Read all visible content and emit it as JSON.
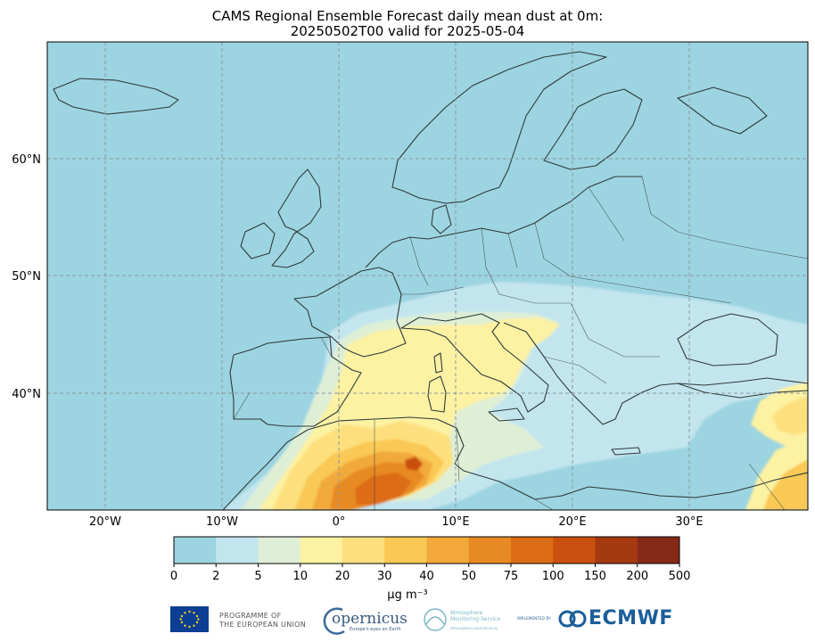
{
  "title": {
    "line1": "CAMS Regional Ensemble Forecast daily mean dust at 0m:",
    "line2": "20250502T00 valid for 2025-05-04"
  },
  "map": {
    "extent": {
      "lon": [
        -25,
        40
      ],
      "lat": [
        30,
        70
      ]
    },
    "ocean_color": "#9dd4e1",
    "gridlines": {
      "lon": [
        -20,
        -10,
        0,
        10,
        20,
        30
      ],
      "lat": [
        40,
        50,
        60
      ],
      "style": "dashed"
    },
    "lon_labels": [
      "20°W",
      "10°W",
      "0°",
      "10°E",
      "20°E",
      "30°E"
    ],
    "lat_labels": [
      "40°N",
      "50°N",
      "60°N"
    ]
  },
  "colorbar": {
    "bounds": [
      "0",
      "2",
      "5",
      "10",
      "20",
      "30",
      "40",
      "50",
      "75",
      "100",
      "150",
      "200",
      "500"
    ],
    "colors": [
      "#9dd4e1",
      "#c3e5ee",
      "#deefd6",
      "#fdf1a2",
      "#fde07d",
      "#f9c855",
      "#f2a93a",
      "#e88a24",
      "#dc6c16",
      "#c9500f",
      "#a53a10",
      "#862a18"
    ],
    "label": "μg m⁻³"
  },
  "logos": {
    "eu": "PROGRAMME OF\nTHE EUROPEAN UNION",
    "copernicus": "opernicus",
    "copernicus_sub": "Europe's eyes on Earth",
    "ams_line1": "Atmosphere",
    "ams_line2": "Monitoring Service",
    "ams_sub": "atmosphere.copernicus.eu",
    "implemented_by": "IMPLEMENTED BY",
    "ecmwf": "ECMWF"
  }
}
